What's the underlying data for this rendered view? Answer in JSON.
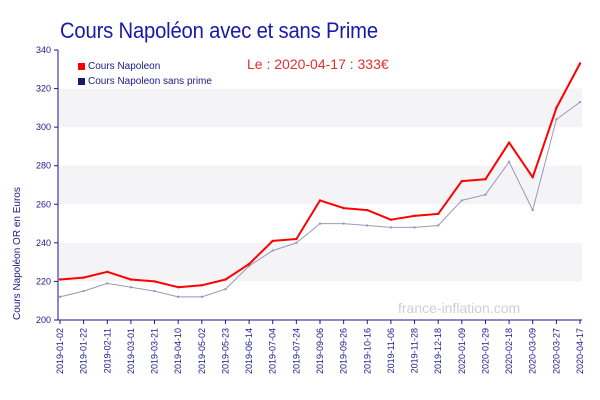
{
  "chart_data": {
    "type": "line",
    "title": "Cours Napoléon avec et sans Prime",
    "annotation": "Le : 2020-04-17 : 333€",
    "watermark": "france-inflation.com",
    "ylabel": "Cours Napoléon OR en Euros",
    "xlabel": "",
    "ylim": [
      200,
      340
    ],
    "yticks": [
      200,
      220,
      240,
      260,
      280,
      300,
      320,
      340
    ],
    "grid": "alternating horizontal bands",
    "legend_position": "top-left",
    "x_tick_labels": [
      "2019-01-02",
      "2019-01-22",
      "2019-02-11",
      "2019-03-01",
      "2019-03-21",
      "2019-04-10",
      "2019-05-02",
      "2019-05-23",
      "2019-06-14",
      "2019-07-04",
      "2019-07-24",
      "2019-09-06",
      "2019-09-26",
      "2019-10-16",
      "2019-11-06",
      "2019-11-28",
      "2019-12-18",
      "2020-01-09",
      "2020-01-29",
      "2020-02-18",
      "2020-03-09",
      "2020-03-27",
      "2020-04-17"
    ],
    "x": [
      "2019-01-02",
      "2019-01-22",
      "2019-02-11",
      "2019-03-01",
      "2019-03-21",
      "2019-04-10",
      "2019-05-02",
      "2019-05-23",
      "2019-06-14",
      "2019-07-04",
      "2019-07-24",
      "2019-09-06",
      "2019-09-26",
      "2019-10-16",
      "2019-11-06",
      "2019-11-28",
      "2019-12-18",
      "2020-01-09",
      "2020-01-29",
      "2020-02-18",
      "2020-03-09",
      "2020-03-27",
      "2020-04-17"
    ],
    "series": [
      {
        "name": "Cours Napoleon",
        "color": "#ff0000",
        "values": [
          221,
          222,
          225,
          221,
          220,
          217,
          218,
          221,
          229,
          241,
          242,
          262,
          258,
          257,
          252,
          254,
          255,
          272,
          273,
          292,
          274,
          310,
          333
        ]
      },
      {
        "name": "Cours Napoleon sans prime",
        "color": "#9999bb",
        "values": [
          212,
          215,
          219,
          217,
          215,
          212,
          212,
          216,
          228,
          236,
          240,
          250,
          250,
          249,
          248,
          248,
          249,
          262,
          265,
          282,
          257,
          304,
          313
        ]
      }
    ]
  }
}
